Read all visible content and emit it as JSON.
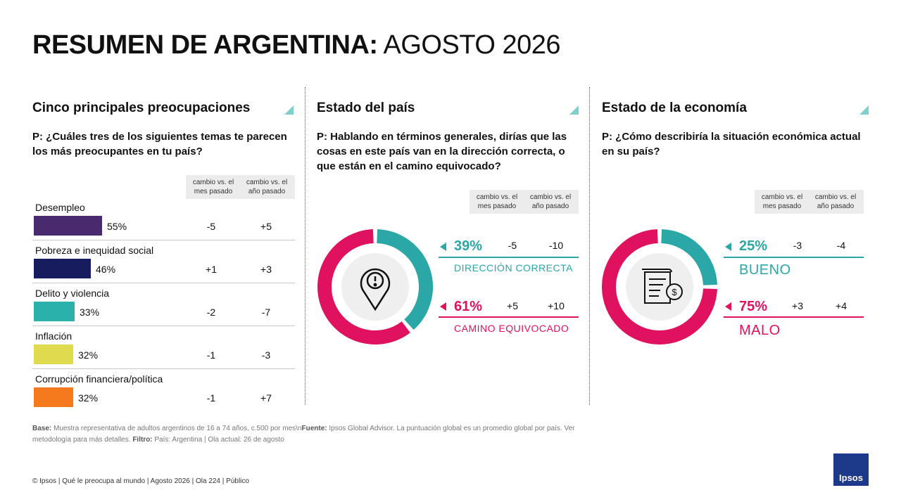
{
  "header": {
    "title_bold": "RESUMEN DE ARGENTINA:",
    "title_light": "AGOSTO 2026"
  },
  "concerns": {
    "title": "Cinco principales preocupaciones",
    "question": "P: ¿Cuáles tres de los siguientes temas te parecen los más preocupantes en tu país?",
    "col_month": "cambio vs. el mes pasado",
    "col_year": "cambio vs. el año pasado",
    "items": [
      {
        "label": "Desempleo",
        "value": 55,
        "pct": "55%",
        "month": "-5",
        "year": "+5",
        "color": "#4a2a6e"
      },
      {
        "label": "Pobreza e inequidad social",
        "value": 46,
        "pct": "46%",
        "month": "+1",
        "year": "+3",
        "color": "#161c5e"
      },
      {
        "label": "Delito y violencia",
        "value": 33,
        "pct": "33%",
        "month": "-2",
        "year": "-7",
        "color": "#2bb1ac"
      },
      {
        "label": "Inflación",
        "value": 32,
        "pct": "32%",
        "month": "-1",
        "year": "-3",
        "color": "#dedc4e"
      },
      {
        "label": "Corrupción financiera/política",
        "value": 32,
        "pct": "32%",
        "month": "-1",
        "year": "+7",
        "color": "#f57a1e"
      }
    ]
  },
  "country": {
    "title": "Estado del país",
    "question": "P: Hablando en términos generales, dirías que las cosas en este país van en la dirección correcta, o que están en el camino equivocado?",
    "col_month": "cambio vs. el mes pasado",
    "col_year": "cambio vs. el año pasado",
    "correct": {
      "pct": "39%",
      "value": 39,
      "month": "-5",
      "year": "-10",
      "label": "DIRECCIÓN CORRECTA",
      "color": "#2aa7a6"
    },
    "wrong": {
      "pct": "61%",
      "value": 61,
      "month": "+5",
      "year": "+10",
      "label": "CAMINO EQUIVOCADO",
      "color": "#e0115f"
    },
    "icon": "map-pin-alert-icon"
  },
  "economy": {
    "title": "Estado de la economía",
    "question": "P: ¿Cómo describiría la situación económica actual en su país?",
    "col_month": "cambio vs. el mes pasado",
    "col_year": "cambio vs. el año pasado",
    "good": {
      "pct": "25%",
      "value": 25,
      "month": "-3",
      "year": "-4",
      "label": "BUENO",
      "color": "#2aa7a6"
    },
    "bad": {
      "pct": "75%",
      "value": 75,
      "month": "+3",
      "year": "+4",
      "label": "MALO",
      "color": "#e0115f"
    },
    "icon": "bill-dollar-icon"
  },
  "footer": {
    "base_label": "Base:",
    "base_text": "Muestra representativa de adultos argentinos de 16 a 74 años, c.500 por mes\\n",
    "source_label": "Fuente:",
    "source_text": "Ipsos Global Advisor. La puntuación global es un promedio global por país. Ver metodología para más detalles.",
    "filter_label": "Filtro:",
    "filter_text": "País: Argentina | Ola actual: 26 de agosto",
    "copyright": "© Ipsos | Qué le preocupa al mundo | Agosto 2026 | Ola 224 | Público",
    "logo_text": "Ipsos"
  }
}
